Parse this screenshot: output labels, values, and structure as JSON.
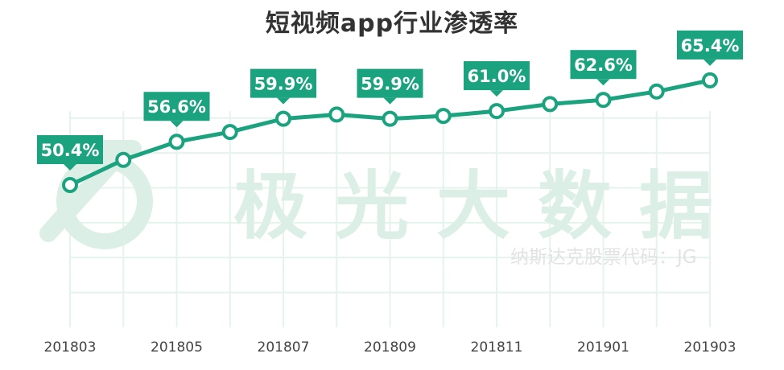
{
  "title": "短视频app行业渗透率",
  "watermark": {
    "main": "极光大数据",
    "sub": "纳斯达克股票代码：JG"
  },
  "colors": {
    "line": "#1aa37e",
    "label_bg": "#1aa37e",
    "label_text": "#ffffff",
    "grid": "#e4f3ec",
    "watermark": "#dcefe6"
  },
  "chart_data": {
    "type": "line",
    "title": "短视频app行业渗透率",
    "xlabel": "",
    "ylabel": "",
    "x": [
      "201803",
      "201804",
      "201805",
      "201806",
      "201807",
      "201808",
      "201809",
      "201810",
      "201811",
      "201812",
      "201901",
      "201902",
      "201903"
    ],
    "x_tick_labels": [
      "201803",
      "201805",
      "201807",
      "201809",
      "201811",
      "201901",
      "201903"
    ],
    "series": [
      {
        "values": [
          50.4,
          54.0,
          56.6,
          58.0,
          59.9,
          60.5,
          59.9,
          60.3,
          61.0,
          62.0,
          62.6,
          63.8,
          65.4
        ]
      }
    ],
    "data_labels": [
      {
        "x": "201803",
        "text": "50.4%"
      },
      {
        "x": "201805",
        "text": "56.6%"
      },
      {
        "x": "201807",
        "text": "59.9%"
      },
      {
        "x": "201809",
        "text": "59.9%"
      },
      {
        "x": "201811",
        "text": "61.0%"
      },
      {
        "x": "201901",
        "text": "62.6%"
      },
      {
        "x": "201903",
        "text": "65.4%"
      }
    ],
    "ylim": [
      30,
      70
    ],
    "grid": true,
    "legend": "none"
  }
}
